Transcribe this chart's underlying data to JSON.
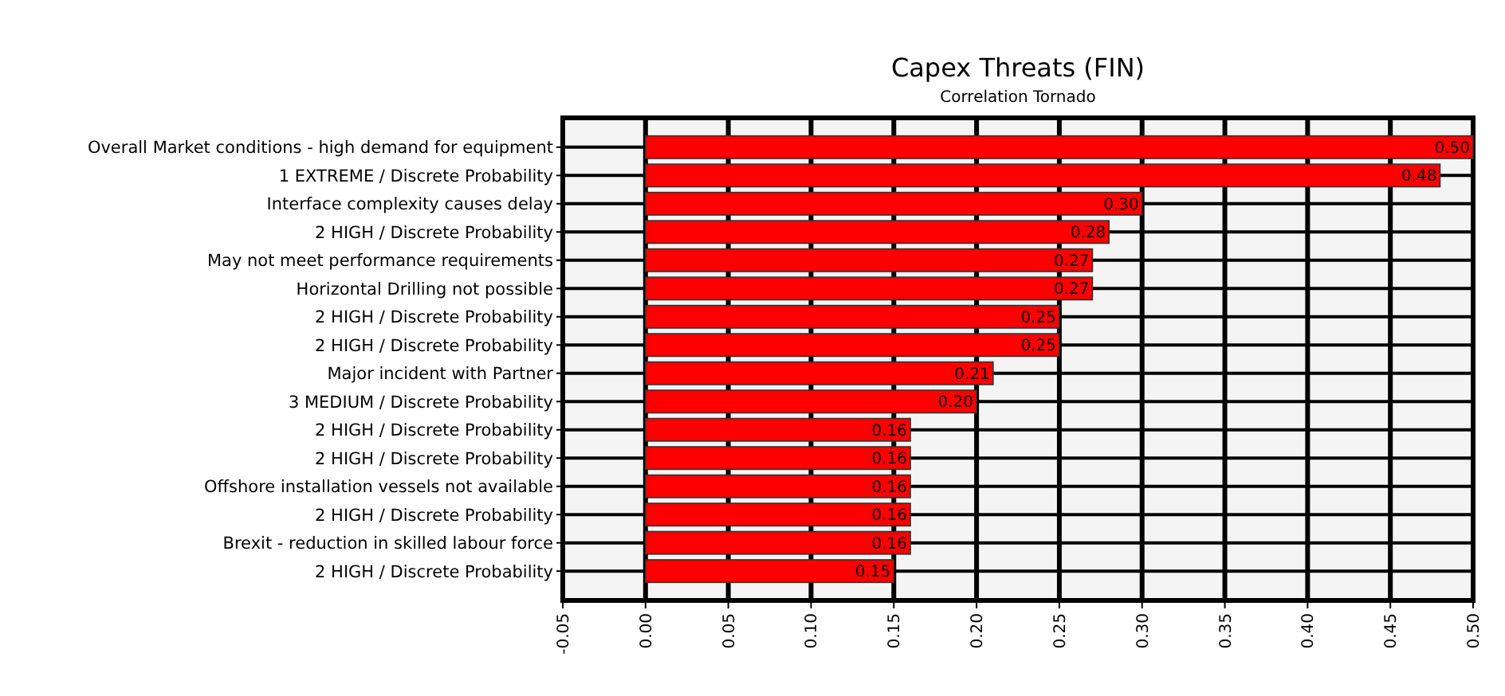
{
  "chart_data": {
    "type": "bar",
    "orientation": "horizontal",
    "title": "Capex Threats (FIN)",
    "subtitle": "Correlation Tornado",
    "categories": [
      "Overall Market conditions - high demand for equipment",
      "1 EXTREME / Discrete Probability",
      "Interface complexity causes delay",
      "2 HIGH / Discrete Probability",
      "May not meet performance requirements",
      "Horizontal Drilling not possible",
      "2 HIGH / Discrete Probability",
      "2 HIGH / Discrete Probability",
      "Major incident with Partner",
      "3 MEDIUM / Discrete Probability",
      "2 HIGH / Discrete Probability",
      "2 HIGH / Discrete Probability",
      "Offshore installation vessels not available",
      "2 HIGH / Discrete Probability",
      "Brexit - reduction in skilled labour force",
      "2 HIGH / Discrete Probability"
    ],
    "values": [
      0.5,
      0.48,
      0.3,
      0.28,
      0.27,
      0.27,
      0.25,
      0.25,
      0.21,
      0.2,
      0.16,
      0.16,
      0.16,
      0.16,
      0.16,
      0.15
    ],
    "value_labels": [
      "0.50",
      "0.48",
      "0.30",
      "0.28",
      "0.27",
      "0.27",
      "0.25",
      "0.25",
      "0.21",
      "0.20",
      "0.16",
      "0.16",
      "0.16",
      "0.16",
      "0.16",
      "0.15"
    ],
    "color": "#ff0000",
    "xlim": [
      -0.05,
      0.5
    ],
    "xticks": [
      {
        "value": -0.05,
        "label": "-0.05"
      },
      {
        "value": 0,
        "label": "0.00"
      },
      {
        "value": 0.05,
        "label": "0.05"
      },
      {
        "value": 0.1,
        "label": "0.10"
      },
      {
        "value": 0.15,
        "label": "0.15"
      },
      {
        "value": 0.2,
        "label": "0.20"
      },
      {
        "value": 0.25,
        "label": "0.25"
      },
      {
        "value": 0.3,
        "label": "0.30"
      },
      {
        "value": 0.35,
        "label": "0.35"
      },
      {
        "value": 0.4,
        "label": "0.40"
      },
      {
        "value": 0.45,
        "label": "0.45"
      },
      {
        "value": 0.5,
        "label": "0.50"
      }
    ],
    "grid": true
  }
}
